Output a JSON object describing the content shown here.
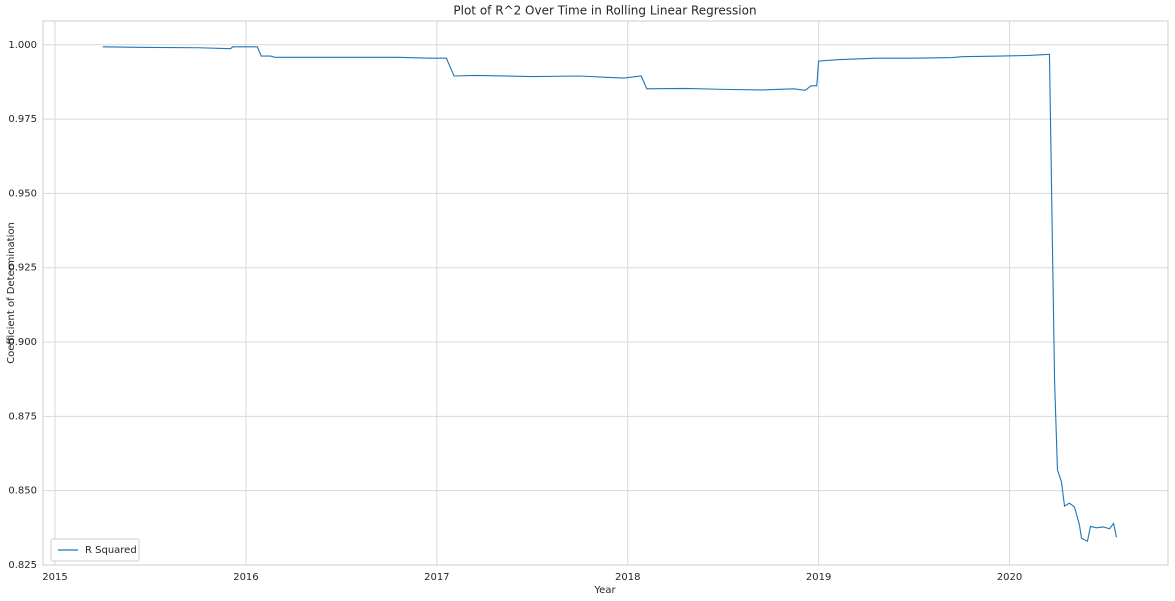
{
  "chart_data": {
    "type": "line",
    "title": "Plot of R^2 Over Time in Rolling Linear Regression",
    "x_label": "Year",
    "y_label": "Coefficient of Determination",
    "x": [
      2015.25,
      2015.5,
      2015.75,
      2015.92,
      2015.93,
      2016.06,
      2016.08,
      2016.13,
      2016.15,
      2016.5,
      2016.8,
      2016.96,
      2017.05,
      2017.09,
      2017.2,
      2017.5,
      2017.75,
      2017.9,
      2017.98,
      2018.07,
      2018.1,
      2018.3,
      2018.5,
      2018.7,
      2018.87,
      2018.93,
      2018.96,
      2018.99,
      2019.0,
      2019.1,
      2019.3,
      2019.5,
      2019.7,
      2019.75,
      2019.95,
      2020.1,
      2020.209,
      2020.236,
      2020.251,
      2020.272,
      2020.288,
      2020.314,
      2020.34,
      2020.366,
      2020.377,
      2020.408,
      2020.424,
      2020.455,
      2020.492,
      2020.524,
      2020.545,
      2020.56
    ],
    "series": [
      {
        "name": "R Squared",
        "color": "#1f77b4",
        "values": [
          0.9993,
          0.9991,
          0.999,
          0.9987,
          0.9993,
          0.9993,
          0.9962,
          0.9962,
          0.9958,
          0.9958,
          0.9958,
          0.9955,
          0.9955,
          0.9895,
          0.9897,
          0.9893,
          0.9895,
          0.989,
          0.9888,
          0.9895,
          0.9852,
          0.9853,
          0.985,
          0.9848,
          0.9852,
          0.9847,
          0.9862,
          0.9862,
          0.9945,
          0.995,
          0.9955,
          0.9955,
          0.9957,
          0.996,
          0.9962,
          0.9964,
          0.9968,
          0.8865,
          0.857,
          0.853,
          0.8448,
          0.8458,
          0.8445,
          0.8385,
          0.834,
          0.833,
          0.838,
          0.8375,
          0.8378,
          0.8372,
          0.839,
          0.8343
        ]
      }
    ],
    "xlim": [
      2014.937,
      2020.83
    ],
    "xticks": [
      2015,
      2016,
      2017,
      2018,
      2019,
      2020
    ],
    "ylim": [
      0.825,
      1.008
    ],
    "yticks": [
      {
        "value": 0.825,
        "label": "0.825"
      },
      {
        "value": 0.85,
        "label": "0.850"
      },
      {
        "value": 0.875,
        "label": "0.875"
      },
      {
        "value": 0.9,
        "label": "0.900"
      },
      {
        "value": 0.925,
        "label": "0.925"
      },
      {
        "value": 0.95,
        "label": "0.950"
      },
      {
        "value": 0.975,
        "label": "0.975"
      },
      {
        "value": 1,
        "label": "1.000"
      }
    ],
    "grid": true,
    "legend": "lower left"
  }
}
